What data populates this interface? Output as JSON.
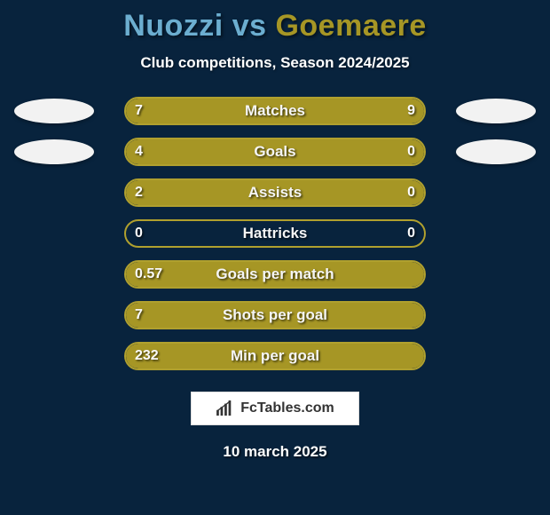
{
  "background_color": "#08233d",
  "title": {
    "player_a": "Nuozzi",
    "vs": " vs ",
    "player_b": "Goemaere",
    "color_a": "#6caed0",
    "color_b": "#a69625",
    "fontsize": 34
  },
  "subtitle": "Club competitions, Season 2024/2025",
  "avatar_rows": [
    0,
    1
  ],
  "bar_style": {
    "track_bg": "#08233d",
    "border_color": "#b0a02e",
    "fill_a": "#a69625",
    "fill_b": "#a69625",
    "label_color": "#f5f5f5",
    "value_color": "#fafafa",
    "height": 32,
    "radius": 16,
    "track_width": 340
  },
  "rows": [
    {
      "label": "Matches",
      "a": "7",
      "b": "9",
      "left_pct": 0.44,
      "right_pct": 0.56
    },
    {
      "label": "Goals",
      "a": "4",
      "b": "0",
      "left_pct": 0.77,
      "right_pct": 0.23
    },
    {
      "label": "Assists",
      "a": "2",
      "b": "0",
      "left_pct": 0.77,
      "right_pct": 0.23
    },
    {
      "label": "Hattricks",
      "a": "0",
      "b": "0",
      "left_pct": 0.0,
      "right_pct": 0.0
    },
    {
      "label": "Goals per match",
      "a": "0.57",
      "b": "",
      "left_pct": 1.0,
      "right_pct": 0.0
    },
    {
      "label": "Shots per goal",
      "a": "7",
      "b": "",
      "left_pct": 1.0,
      "right_pct": 0.0
    },
    {
      "label": "Min per goal",
      "a": "232",
      "b": "",
      "left_pct": 1.0,
      "right_pct": 0.0
    }
  ],
  "watermark": {
    "text": "FcTables.com",
    "bg": "#ffffff",
    "border": "#dddddd",
    "icon_color": "#333333"
  },
  "date": "10 march 2025"
}
